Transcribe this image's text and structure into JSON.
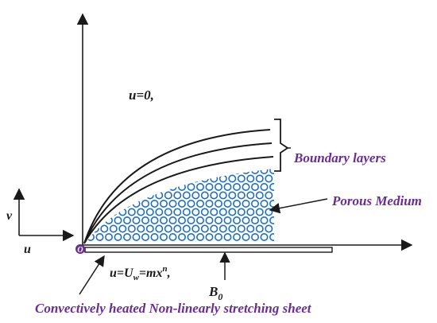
{
  "labels": {
    "u_zero": "u=0,",
    "boundary_layers": "Boundary layers",
    "porous_medium": "Porous Medium",
    "v_axis": "v",
    "u_axis": "u",
    "origin": "O",
    "wall_velocity": {
      "base": "u=U",
      "sub": "w",
      "mid": "=mx",
      "sup": "n",
      "tail": ","
    },
    "magnetic_field": {
      "base": "B",
      "sub": "0"
    },
    "sheet_caption": "Convectively heated Non-linearly stretching sheet"
  },
  "colors": {
    "ink": "#1a1a1a",
    "label_purple": "#6a2c91",
    "particle_blue": "#1f6fc0",
    "origin_dot": "#6a2c91",
    "sheet_fill": "#ffffff"
  },
  "diagram": {
    "boundary_layer_count": 3,
    "porous_particle_shape": "circle",
    "icons": [
      "origin-dot",
      "axis-arrows"
    ]
  }
}
